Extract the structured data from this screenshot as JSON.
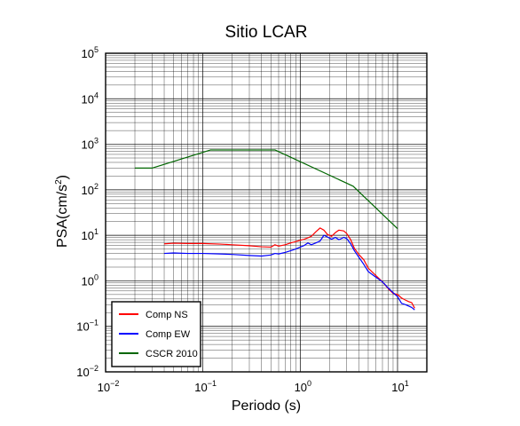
{
  "chart_data": {
    "type": "line",
    "title": "Sitio LCAR",
    "xlabel": "Periodo (s)",
    "ylabel": "PSA(cm/s²)",
    "ylabel_base": "PSA(cm/s",
    "ylabel_exp": "2",
    "ylabel_end": ")",
    "xscale": "log",
    "yscale": "log",
    "xlim": [
      0.01,
      20
    ],
    "ylim": [
      0.01,
      100000
    ],
    "grid": true,
    "legend_position": "bottom-left",
    "x_ticks": [
      {
        "value": 0.01,
        "base": "10",
        "exp": "−2"
      },
      {
        "value": 0.1,
        "base": "10",
        "exp": "−1"
      },
      {
        "value": 1,
        "base": "10",
        "exp": "0"
      },
      {
        "value": 10,
        "base": "10",
        "exp": "1"
      }
    ],
    "y_ticks": [
      {
        "value": 0.01,
        "base": "10",
        "exp": "−2"
      },
      {
        "value": 0.1,
        "base": "10",
        "exp": "−1"
      },
      {
        "value": 1,
        "base": "10",
        "exp": "0"
      },
      {
        "value": 10,
        "base": "10",
        "exp": "1"
      },
      {
        "value": 100,
        "base": "10",
        "exp": "2"
      },
      {
        "value": 1000,
        "base": "10",
        "exp": "3"
      },
      {
        "value": 10000,
        "base": "10",
        "exp": "4"
      },
      {
        "value": 100000,
        "base": "10",
        "exp": "5"
      }
    ],
    "series": [
      {
        "name": "Comp NS",
        "color": "#ff0000",
        "x": [
          0.04,
          0.05,
          0.07,
          0.1,
          0.15,
          0.2,
          0.3,
          0.4,
          0.5,
          0.55,
          0.6,
          0.7,
          0.8,
          0.9,
          1.0,
          1.1,
          1.2,
          1.3,
          1.45,
          1.6,
          1.75,
          1.9,
          2.1,
          2.3,
          2.5,
          2.8,
          3.0,
          3.3,
          3.6,
          4.0,
          4.5,
          5.0,
          6.0,
          7.0,
          8.0,
          9.0,
          10.0,
          11.0,
          12.0,
          13.0,
          14.0,
          15.0
        ],
        "y": [
          6.5,
          6.7,
          6.6,
          6.6,
          6.4,
          6.2,
          5.9,
          5.6,
          5.5,
          6.2,
          5.8,
          6.2,
          6.8,
          7.3,
          7.8,
          8.2,
          8.8,
          9.5,
          12.0,
          14.5,
          13.0,
          10.5,
          9.5,
          11.5,
          13.0,
          12.5,
          11.0,
          8.0,
          5.2,
          3.8,
          2.9,
          1.9,
          1.3,
          0.95,
          0.68,
          0.53,
          0.5,
          0.42,
          0.38,
          0.35,
          0.33,
          0.25
        ]
      },
      {
        "name": "Comp EW",
        "color": "#0000ff",
        "x": [
          0.04,
          0.05,
          0.07,
          0.1,
          0.15,
          0.2,
          0.3,
          0.4,
          0.5,
          0.55,
          0.6,
          0.7,
          0.8,
          0.9,
          1.0,
          1.1,
          1.2,
          1.3,
          1.45,
          1.6,
          1.75,
          1.9,
          2.1,
          2.3,
          2.5,
          2.8,
          3.0,
          3.3,
          3.6,
          4.0,
          4.5,
          5.0,
          6.0,
          7.0,
          8.0,
          9.0,
          10.0,
          11.0,
          12.0,
          13.0,
          14.0,
          15.0
        ],
        "y": [
          4.0,
          4.1,
          4.0,
          4.0,
          3.9,
          3.8,
          3.6,
          3.5,
          3.7,
          4.0,
          3.9,
          4.2,
          4.6,
          5.0,
          5.5,
          6.0,
          6.8,
          6.2,
          6.8,
          7.5,
          10.0,
          9.2,
          8.2,
          9.0,
          8.0,
          9.0,
          8.5,
          6.5,
          4.6,
          3.3,
          2.3,
          1.6,
          1.2,
          0.95,
          0.7,
          0.55,
          0.45,
          0.32,
          0.3,
          0.28,
          0.26,
          0.23
        ]
      },
      {
        "name": "CSCR 2010",
        "color": "#006600",
        "x": [
          0.02,
          0.03,
          0.12,
          0.55,
          3.5,
          10.0
        ],
        "y": [
          300,
          300,
          750,
          750,
          120,
          14
        ]
      }
    ]
  }
}
